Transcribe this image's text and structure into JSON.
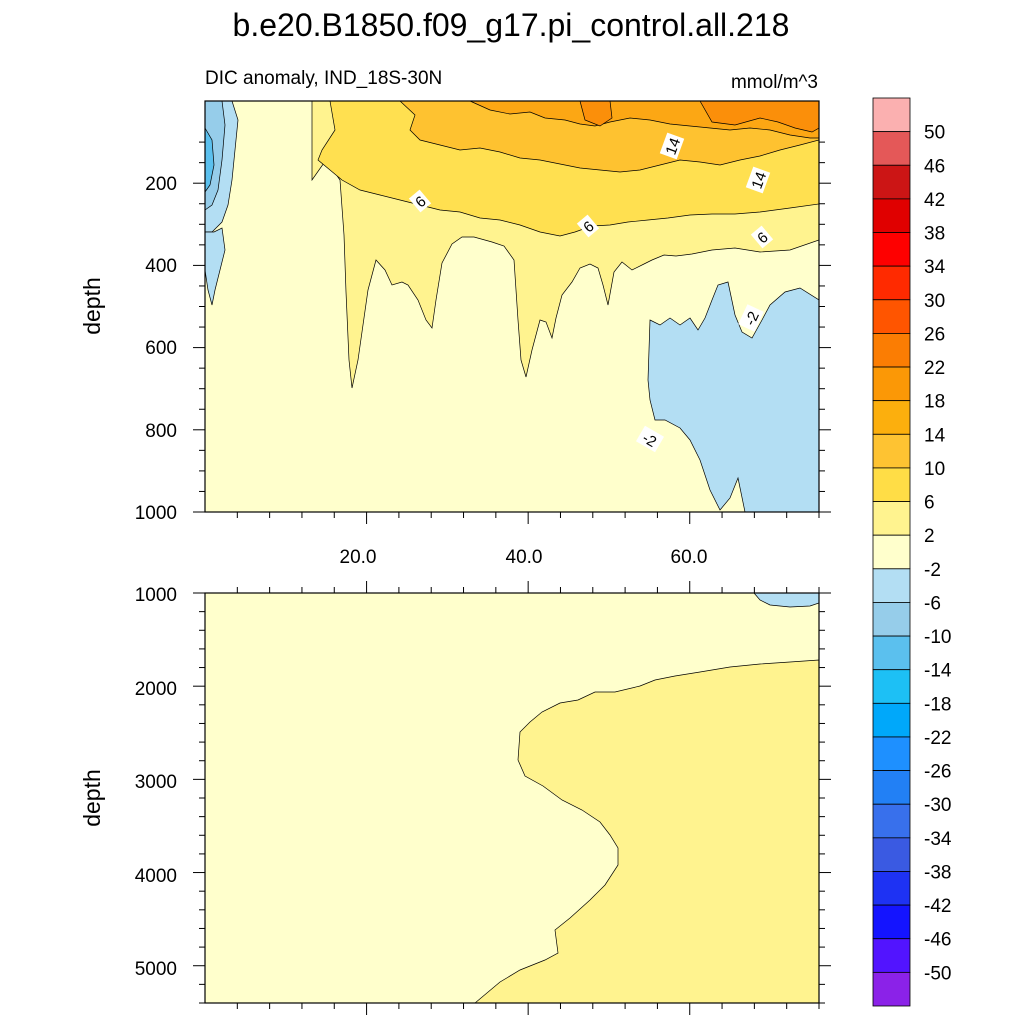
{
  "figure": {
    "title": "b.e20.B1850.f09_g17.pi_control.all.218"
  },
  "chart_data": [
    {
      "type": "contour",
      "panel": "upper",
      "subtitle_left": "DIC anomaly, IND_18S-30N",
      "subtitle_right": "mmol/m^3",
      "ylabel": "depth",
      "xlim": [
        0,
        76
      ],
      "ylim": [
        1000,
        0
      ],
      "x_ticks": [
        "20.0",
        "40.0",
        "60.0"
      ],
      "y_ticks": [
        "200",
        "400",
        "600",
        "800",
        "1000"
      ],
      "contour_labels": [
        "14",
        "14",
        "6",
        "6",
        "6",
        "-2",
        "-2"
      ],
      "colors": {
        "c_m10": "#96cdea",
        "c_m6": "#b3def3",
        "c_m2": "#ffffcc",
        "c_2": "#fff38f",
        "c_6": "#ffe050",
        "c_10": "#fec230",
        "c_14": "#fca714",
        "c_18": "#fb8f0a"
      }
    },
    {
      "type": "contour",
      "panel": "lower",
      "ylabel": "depth",
      "xlim": [
        0,
        76
      ],
      "ylim": [
        5400,
        1000
      ],
      "y_ticks": [
        "1000",
        "2000",
        "3000",
        "4000",
        "5000"
      ],
      "colors": {
        "c_m6": "#b3def3",
        "c_m2": "#ffffcc",
        "c_2": "#fff38f"
      }
    }
  ],
  "colorbar": {
    "labels": [
      "50",
      "46",
      "42",
      "38",
      "34",
      "30",
      "26",
      "22",
      "18",
      "14",
      "10",
      "6",
      "2",
      "-2",
      "-6",
      "-10",
      "-14",
      "-18",
      "-22",
      "-26",
      "-30",
      "-34",
      "-38",
      "-42",
      "-46",
      "-50"
    ],
    "colors": [
      "#fbb0b0",
      "#e45858",
      "#cc1515",
      "#e00000",
      "#fe0000",
      "#ff2a00",
      "#ff5500",
      "#fb7d03",
      "#fb9806",
      "#fcaf0d",
      "#fec332",
      "#ffdd46",
      "#fff38f",
      "#ffffcc",
      "#b3def3",
      "#96cdea",
      "#5bc0ee",
      "#1dc0f5",
      "#00a8fa",
      "#1e90ff",
      "#2280f5",
      "#3870ec",
      "#3a5ae2",
      "#1e32f3",
      "#1414ff",
      "#5214ff",
      "#8b22e8"
    ]
  }
}
